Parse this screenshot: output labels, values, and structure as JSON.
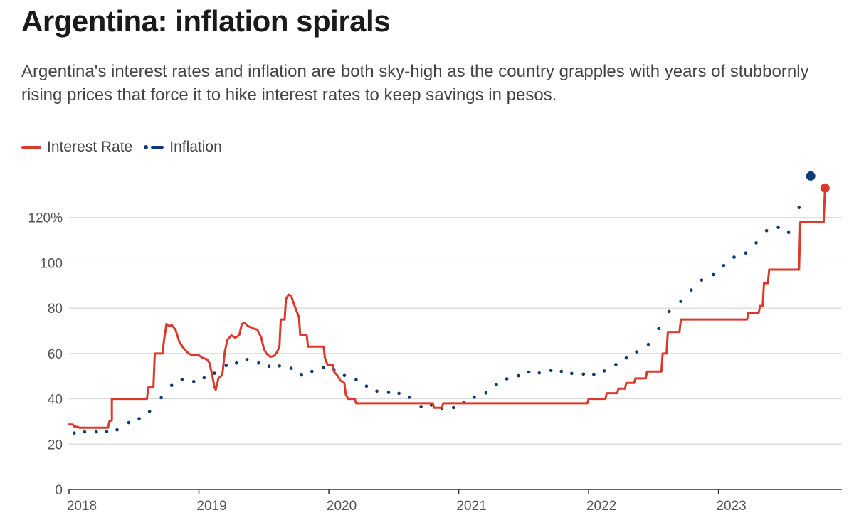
{
  "title": "Argentina: inflation spirals",
  "subtitle": "Argentina's interest rates and inflation are both sky-high as the country grapples with years of stubbornly rising prices that force it to hike interest rates to keep savings in pesos.",
  "colors": {
    "interest_rate": "#d93a2b",
    "inflation": "#0c3b7a",
    "grid": "#d9d9d9",
    "axis": "#333333"
  },
  "chart_data": {
    "type": "line",
    "title": "Argentina: inflation spirals",
    "xlabel": "",
    "ylabel": "",
    "xlim": [
      2018.0,
      2023.95
    ],
    "ylim": [
      0,
      140
    ],
    "x_ticks": [
      {
        "value": 2018,
        "label": "2018"
      },
      {
        "value": 2019,
        "label": "2019"
      },
      {
        "value": 2020,
        "label": "2020"
      },
      {
        "value": 2021,
        "label": "2021"
      },
      {
        "value": 2022,
        "label": "2022"
      },
      {
        "value": 2023,
        "label": "2023"
      }
    ],
    "y_ticks": [
      {
        "value": 0,
        "label": "0"
      },
      {
        "value": 20,
        "label": "20"
      },
      {
        "value": 40,
        "label": "40"
      },
      {
        "value": 60,
        "label": "60"
      },
      {
        "value": 80,
        "label": "80"
      },
      {
        "value": 100,
        "label": "100"
      },
      {
        "value": 120,
        "label": "120%"
      }
    ],
    "grid": true,
    "legend_position": "top-left",
    "series": [
      {
        "name": "Interest Rate",
        "style": "line",
        "end_marker": true,
        "points": [
          [
            2018.0,
            28.7
          ],
          [
            2018.03,
            28.6
          ],
          [
            2018.04,
            27.8
          ],
          [
            2018.07,
            27.5
          ],
          [
            2018.08,
            27.2
          ],
          [
            2018.1,
            27.2
          ],
          [
            2018.3,
            27.2
          ],
          [
            2018.31,
            30.0
          ],
          [
            2018.33,
            30.5
          ],
          [
            2018.33,
            40.0
          ],
          [
            2018.6,
            40.0
          ],
          [
            2018.61,
            45.0
          ],
          [
            2018.65,
            45.0
          ],
          [
            2018.66,
            60.0
          ],
          [
            2018.72,
            60.0
          ],
          [
            2018.73,
            65.0
          ],
          [
            2018.75,
            73.0
          ],
          [
            2018.77,
            72.0
          ],
          [
            2018.79,
            72.5
          ],
          [
            2018.82,
            70.5
          ],
          [
            2018.85,
            65.0
          ],
          [
            2018.88,
            62.5
          ],
          [
            2018.92,
            60.0
          ],
          [
            2018.95,
            59.2
          ],
          [
            2019.0,
            59.2
          ],
          [
            2019.03,
            58.0
          ],
          [
            2019.06,
            57.5
          ],
          [
            2019.08,
            56.0
          ],
          [
            2019.1,
            51.0
          ],
          [
            2019.12,
            45.0
          ],
          [
            2019.13,
            44.0
          ],
          [
            2019.15,
            49.0
          ],
          [
            2019.18,
            50.5
          ],
          [
            2019.2,
            61.0
          ],
          [
            2019.22,
            66.0
          ],
          [
            2019.25,
            68.0
          ],
          [
            2019.28,
            67.0
          ],
          [
            2019.31,
            68.0
          ],
          [
            2019.33,
            73.0
          ],
          [
            2019.35,
            73.5
          ],
          [
            2019.38,
            72.0
          ],
          [
            2019.42,
            71.0
          ],
          [
            2019.45,
            70.5
          ],
          [
            2019.48,
            67.0
          ],
          [
            2019.5,
            62.0
          ],
          [
            2019.52,
            60.0
          ],
          [
            2019.55,
            58.5
          ],
          [
            2019.58,
            59.0
          ],
          [
            2019.6,
            60.5
          ],
          [
            2019.62,
            63.0
          ],
          [
            2019.63,
            75.0
          ],
          [
            2019.66,
            75.0
          ],
          [
            2019.67,
            84.0
          ],
          [
            2019.69,
            86.0
          ],
          [
            2019.71,
            85.5
          ],
          [
            2019.73,
            82.0
          ],
          [
            2019.75,
            79.0
          ],
          [
            2019.77,
            76.0
          ],
          [
            2019.78,
            68.0
          ],
          [
            2019.83,
            68.0
          ],
          [
            2019.84,
            63.0
          ],
          [
            2019.96,
            63.0
          ],
          [
            2019.97,
            58.0
          ],
          [
            2019.99,
            55.0
          ],
          [
            2020.03,
            55.0
          ],
          [
            2020.04,
            52.0
          ],
          [
            2020.07,
            50.0
          ],
          [
            2020.09,
            48.0
          ],
          [
            2020.12,
            47.0
          ],
          [
            2020.13,
            42.0
          ],
          [
            2020.15,
            40.0
          ],
          [
            2020.2,
            40.0
          ],
          [
            2020.21,
            38.0
          ],
          [
            2020.8,
            38.0
          ],
          [
            2020.81,
            36.0
          ],
          [
            2020.87,
            36.0
          ],
          [
            2020.88,
            38.0
          ],
          [
            2021.99,
            38.0
          ],
          [
            2022.0,
            40.0
          ],
          [
            2022.13,
            40.0
          ],
          [
            2022.14,
            42.5
          ],
          [
            2022.22,
            42.5
          ],
          [
            2022.23,
            44.5
          ],
          [
            2022.28,
            44.5
          ],
          [
            2022.29,
            47.0
          ],
          [
            2022.35,
            47.0
          ],
          [
            2022.36,
            49.0
          ],
          [
            2022.44,
            49.0
          ],
          [
            2022.45,
            52.0
          ],
          [
            2022.56,
            52.0
          ],
          [
            2022.57,
            60.0
          ],
          [
            2022.6,
            60.0
          ],
          [
            2022.61,
            69.5
          ],
          [
            2022.7,
            69.5
          ],
          [
            2022.71,
            75.0
          ],
          [
            2023.22,
            75.0
          ],
          [
            2023.23,
            78.0
          ],
          [
            2023.31,
            78.0
          ],
          [
            2023.32,
            81.0
          ],
          [
            2023.34,
            81.0
          ],
          [
            2023.35,
            91.0
          ],
          [
            2023.38,
            91.0
          ],
          [
            2023.39,
            97.0
          ],
          [
            2023.62,
            97.0
          ],
          [
            2023.63,
            118.0
          ],
          [
            2023.81,
            118.0
          ],
          [
            2023.82,
            133.0
          ]
        ]
      },
      {
        "name": "Inflation",
        "style": "dotted",
        "end_marker": true,
        "points": [
          [
            2018.04,
            24.9
          ],
          [
            2018.12,
            25.4
          ],
          [
            2018.21,
            25.4
          ],
          [
            2018.29,
            25.5
          ],
          [
            2018.37,
            26.3
          ],
          [
            2018.46,
            29.5
          ],
          [
            2018.54,
            31.2
          ],
          [
            2018.62,
            34.4
          ],
          [
            2018.71,
            40.5
          ],
          [
            2018.79,
            45.9
          ],
          [
            2018.87,
            48.5
          ],
          [
            2018.96,
            47.6
          ],
          [
            2019.04,
            49.3
          ],
          [
            2019.12,
            51.3
          ],
          [
            2019.21,
            54.7
          ],
          [
            2019.29,
            55.8
          ],
          [
            2019.37,
            57.3
          ],
          [
            2019.46,
            55.8
          ],
          [
            2019.54,
            54.4
          ],
          [
            2019.62,
            54.5
          ],
          [
            2019.71,
            53.5
          ],
          [
            2019.79,
            50.5
          ],
          [
            2019.87,
            52.1
          ],
          [
            2019.96,
            53.8
          ],
          [
            2020.04,
            52.9
          ],
          [
            2020.12,
            50.3
          ],
          [
            2020.21,
            48.4
          ],
          [
            2020.29,
            45.6
          ],
          [
            2020.37,
            43.4
          ],
          [
            2020.46,
            42.8
          ],
          [
            2020.54,
            42.4
          ],
          [
            2020.62,
            40.7
          ],
          [
            2020.71,
            36.6
          ],
          [
            2020.79,
            37.2
          ],
          [
            2020.87,
            35.8
          ],
          [
            2020.96,
            36.1
          ],
          [
            2021.04,
            38.5
          ],
          [
            2021.12,
            40.7
          ],
          [
            2021.21,
            42.6
          ],
          [
            2021.29,
            46.3
          ],
          [
            2021.37,
            48.8
          ],
          [
            2021.46,
            50.2
          ],
          [
            2021.54,
            51.8
          ],
          [
            2021.62,
            51.4
          ],
          [
            2021.71,
            52.5
          ],
          [
            2021.79,
            52.1
          ],
          [
            2021.87,
            51.2
          ],
          [
            2021.96,
            50.9
          ],
          [
            2022.04,
            50.7
          ],
          [
            2022.12,
            52.3
          ],
          [
            2022.21,
            55.1
          ],
          [
            2022.29,
            58.0
          ],
          [
            2022.37,
            60.7
          ],
          [
            2022.46,
            64.0
          ],
          [
            2022.54,
            71.0
          ],
          [
            2022.62,
            78.5
          ],
          [
            2022.71,
            83.0
          ],
          [
            2022.79,
            88.0
          ],
          [
            2022.87,
            92.4
          ],
          [
            2022.96,
            94.8
          ],
          [
            2023.04,
            98.8
          ],
          [
            2023.12,
            102.5
          ],
          [
            2023.21,
            104.3
          ],
          [
            2023.29,
            108.8
          ],
          [
            2023.37,
            114.2
          ],
          [
            2023.46,
            115.6
          ],
          [
            2023.54,
            113.4
          ],
          [
            2023.62,
            124.4
          ],
          [
            2023.71,
            138.3
          ]
        ]
      }
    ]
  }
}
